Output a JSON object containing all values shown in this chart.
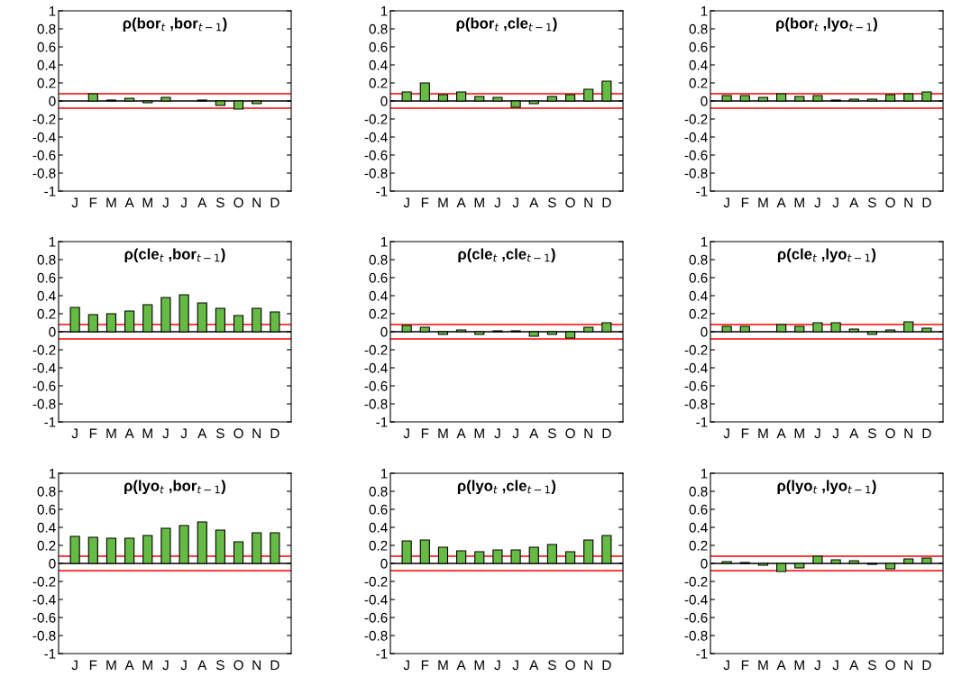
{
  "chart_data": [
    {
      "type": "bar",
      "title": "ρ(bor$_{t}$ ,bor$_{t−1}$)",
      "categories": [
        "J",
        "F",
        "M",
        "A",
        "M",
        "J",
        "J",
        "A",
        "S",
        "O",
        "N",
        "D"
      ],
      "values": [
        null,
        0.08,
        0.01,
        0.03,
        -0.02,
        0.04,
        null,
        0.01,
        -0.05,
        -0.09,
        -0.03,
        null
      ],
      "color": "#66bb44",
      "ylim": [
        -1,
        1
      ],
      "yticks": [
        -1,
        -0.8,
        -0.6,
        -0.4,
        -0.2,
        0,
        0.2,
        0.4,
        0.6,
        0.8,
        1
      ],
      "ref_lines": [
        {
          "axis": "y",
          "value": 0.08,
          "color": "#ff0000"
        },
        {
          "axis": "y",
          "value": -0.08,
          "color": "#ff0000"
        },
        {
          "axis": "y",
          "value": 0,
          "color": "#000000"
        }
      ]
    },
    {
      "type": "bar",
      "title": "ρ(bor$_{t}$ ,cle$_{t−1}$)",
      "categories": [
        "J",
        "F",
        "M",
        "A",
        "M",
        "J",
        "J",
        "A",
        "S",
        "O",
        "N",
        "D"
      ],
      "values": [
        0.1,
        0.2,
        0.07,
        0.1,
        0.05,
        0.04,
        -0.07,
        -0.03,
        0.05,
        0.07,
        0.13,
        0.22
      ],
      "color": "#66bb44",
      "ylim": [
        -1,
        1
      ],
      "yticks": [
        -1,
        -0.8,
        -0.6,
        -0.4,
        -0.2,
        0,
        0.2,
        0.4,
        0.6,
        0.8,
        1
      ],
      "ref_lines": [
        {
          "axis": "y",
          "value": 0.08,
          "color": "#ff0000"
        },
        {
          "axis": "y",
          "value": -0.08,
          "color": "#ff0000"
        },
        {
          "axis": "y",
          "value": 0,
          "color": "#000000"
        }
      ]
    },
    {
      "type": "bar",
      "title": "ρ(bor$_{t}$ ,lyo$_{t−1}$)",
      "categories": [
        "J",
        "F",
        "M",
        "A",
        "M",
        "J",
        "J",
        "A",
        "S",
        "O",
        "N",
        "D"
      ],
      "values": [
        0.06,
        0.06,
        0.04,
        0.08,
        0.05,
        0.06,
        0.01,
        0.02,
        0.02,
        0.07,
        0.08,
        0.1
      ],
      "color": "#66bb44",
      "ylim": [
        -1,
        1
      ],
      "yticks": [
        -1,
        -0.8,
        -0.6,
        -0.4,
        -0.2,
        0,
        0.2,
        0.4,
        0.6,
        0.8,
        1
      ],
      "ref_lines": [
        {
          "axis": "y",
          "value": 0.08,
          "color": "#ff0000"
        },
        {
          "axis": "y",
          "value": -0.08,
          "color": "#ff0000"
        },
        {
          "axis": "y",
          "value": 0,
          "color": "#000000"
        }
      ]
    },
    {
      "type": "bar",
      "title": "ρ(cle$_{t}$ ,bor$_{t−1}$)",
      "categories": [
        "J",
        "F",
        "M",
        "A",
        "M",
        "J",
        "J",
        "A",
        "S",
        "O",
        "N",
        "D"
      ],
      "values": [
        0.27,
        0.19,
        0.2,
        0.23,
        0.3,
        0.38,
        0.41,
        0.32,
        0.26,
        0.18,
        0.26,
        0.22
      ],
      "color": "#66bb44",
      "ylim": [
        -1,
        1
      ],
      "yticks": [
        -1,
        -0.8,
        -0.6,
        -0.4,
        -0.2,
        0,
        0.2,
        0.4,
        0.6,
        0.8,
        1
      ],
      "ref_lines": [
        {
          "axis": "y",
          "value": 0.08,
          "color": "#ff0000"
        },
        {
          "axis": "y",
          "value": -0.08,
          "color": "#ff0000"
        },
        {
          "axis": "y",
          "value": 0,
          "color": "#000000"
        }
      ]
    },
    {
      "type": "bar",
      "title": "ρ(cle$_{t}$ ,cle$_{t−1}$)",
      "categories": [
        "J",
        "F",
        "M",
        "A",
        "M",
        "J",
        "J",
        "A",
        "S",
        "O",
        "N",
        "D"
      ],
      "values": [
        0.07,
        0.05,
        -0.03,
        0.02,
        -0.03,
        0.01,
        0.01,
        -0.05,
        -0.03,
        -0.07,
        0.05,
        0.1
      ],
      "color": "#66bb44",
      "ylim": [
        -1,
        1
      ],
      "yticks": [
        -1,
        -0.8,
        -0.6,
        -0.4,
        -0.2,
        0,
        0.2,
        0.4,
        0.6,
        0.8,
        1
      ],
      "ref_lines": [
        {
          "axis": "y",
          "value": 0.08,
          "color": "#ff0000"
        },
        {
          "axis": "y",
          "value": -0.08,
          "color": "#ff0000"
        },
        {
          "axis": "y",
          "value": 0,
          "color": "#000000"
        }
      ]
    },
    {
      "type": "bar",
      "title": "ρ(cle$_{t}$ ,lyo$_{t−1}$)",
      "categories": [
        "J",
        "F",
        "M",
        "A",
        "M",
        "J",
        "J",
        "A",
        "S",
        "O",
        "N",
        "D"
      ],
      "values": [
        0.06,
        0.06,
        null,
        0.08,
        0.06,
        0.1,
        0.1,
        0.03,
        -0.03,
        0.02,
        0.11,
        0.04
      ],
      "color": "#66bb44",
      "ylim": [
        -1,
        1
      ],
      "yticks": [
        -1,
        -0.8,
        -0.6,
        -0.4,
        -0.2,
        0,
        0.2,
        0.4,
        0.6,
        0.8,
        1
      ],
      "ref_lines": [
        {
          "axis": "y",
          "value": 0.08,
          "color": "#ff0000"
        },
        {
          "axis": "y",
          "value": -0.08,
          "color": "#ff0000"
        },
        {
          "axis": "y",
          "value": 0,
          "color": "#000000"
        }
      ]
    },
    {
      "type": "bar",
      "title": "ρ(lyo$_{t}$ ,bor$_{t−1}$)",
      "categories": [
        "J",
        "F",
        "M",
        "A",
        "M",
        "J",
        "J",
        "A",
        "S",
        "O",
        "N",
        "D"
      ],
      "values": [
        0.3,
        0.29,
        0.28,
        0.28,
        0.31,
        0.39,
        0.42,
        0.46,
        0.37,
        0.24,
        0.34,
        0.34
      ],
      "color": "#66bb44",
      "ylim": [
        -1,
        1
      ],
      "yticks": [
        -1,
        -0.8,
        -0.6,
        -0.4,
        -0.2,
        0,
        0.2,
        0.4,
        0.6,
        0.8,
        1
      ],
      "ref_lines": [
        {
          "axis": "y",
          "value": 0.08,
          "color": "#ff0000"
        },
        {
          "axis": "y",
          "value": -0.08,
          "color": "#ff0000"
        },
        {
          "axis": "y",
          "value": 0,
          "color": "#000000"
        }
      ]
    },
    {
      "type": "bar",
      "title": "ρ(lyo$_{t}$ ,cle$_{t−1}$)",
      "categories": [
        "J",
        "F",
        "M",
        "A",
        "M",
        "J",
        "J",
        "A",
        "S",
        "O",
        "N",
        "D"
      ],
      "values": [
        0.25,
        0.26,
        0.18,
        0.14,
        0.13,
        0.15,
        0.15,
        0.18,
        0.21,
        0.13,
        0.26,
        0.31
      ],
      "color": "#66bb44",
      "ylim": [
        -1,
        1
      ],
      "yticks": [
        -1,
        -0.8,
        -0.6,
        -0.4,
        -0.2,
        0,
        0.2,
        0.4,
        0.6,
        0.8,
        1
      ],
      "ref_lines": [
        {
          "axis": "y",
          "value": 0.08,
          "color": "#ff0000"
        },
        {
          "axis": "y",
          "value": -0.08,
          "color": "#ff0000"
        },
        {
          "axis": "y",
          "value": 0,
          "color": "#000000"
        }
      ]
    },
    {
      "type": "bar",
      "title": "ρ(lyo$_{t}$ ,lyo$_{t−1}$)",
      "categories": [
        "J",
        "F",
        "M",
        "A",
        "M",
        "J",
        "J",
        "A",
        "S",
        "O",
        "N",
        "D"
      ],
      "values": [
        0.02,
        0.01,
        -0.02,
        -0.09,
        -0.05,
        0.08,
        0.04,
        0.03,
        -0.01,
        -0.06,
        0.05,
        0.06
      ],
      "color": "#66bb44",
      "ylim": [
        -1,
        1
      ],
      "yticks": [
        -1,
        -0.8,
        -0.6,
        -0.4,
        -0.2,
        0,
        0.2,
        0.4,
        0.6,
        0.8,
        1
      ],
      "ref_lines": [
        {
          "axis": "y",
          "value": 0.08,
          "color": "#ff0000"
        },
        {
          "axis": "y",
          "value": -0.08,
          "color": "#ff0000"
        },
        {
          "axis": "y",
          "value": 0,
          "color": "#000000"
        }
      ]
    }
  ]
}
